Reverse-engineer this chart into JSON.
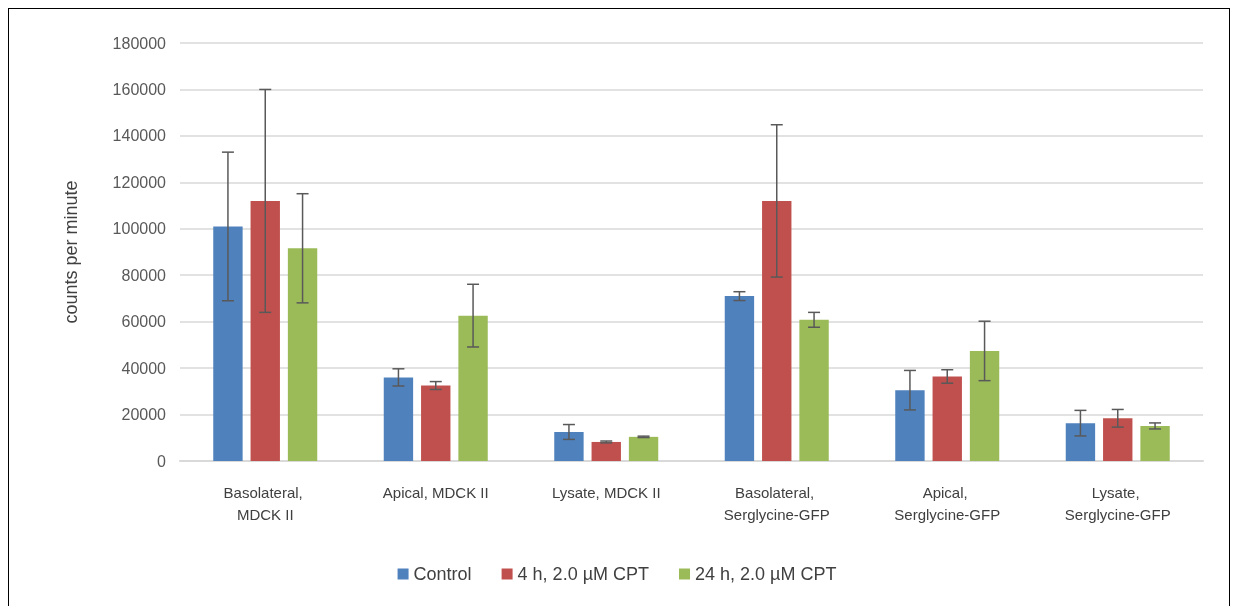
{
  "chart_data": {
    "type": "bar",
    "ylabel": "counts per minute",
    "categories": [
      "Basolateral, MDCK II",
      "Apical, MDCK II",
      "Lysate, MDCK II",
      "Basolateral, Serglycine-GFP",
      "Apical, Serglycine-GFP",
      "Lysate, Serglycine-GFP"
    ],
    "series": [
      {
        "name": "Control",
        "color": "#4f81bd",
        "values": [
          101000,
          36000,
          12500,
          71000,
          30500,
          16300
        ],
        "errors": [
          32000,
          3700,
          3200,
          1900,
          8500,
          5500
        ]
      },
      {
        "name": "4 h, 2.0 µM CPT",
        "color": "#c0504d",
        "values": [
          112000,
          32500,
          8200,
          112000,
          36400,
          18400
        ],
        "errors": [
          48000,
          1700,
          400,
          32800,
          2900,
          3800
        ]
      },
      {
        "name": "24 h, 2.0 µM CPT",
        "color": "#9bbb59",
        "values": [
          91600,
          62600,
          10400,
          60800,
          47400,
          15100
        ],
        "errors": [
          23500,
          13500,
          300,
          3200,
          12800,
          1300
        ]
      }
    ],
    "ylim": [
      0,
      180000
    ],
    "yticks": [
      0,
      20000,
      40000,
      60000,
      80000,
      100000,
      120000,
      140000,
      160000,
      180000
    ],
    "grid": "y",
    "legend": "bottom"
  }
}
